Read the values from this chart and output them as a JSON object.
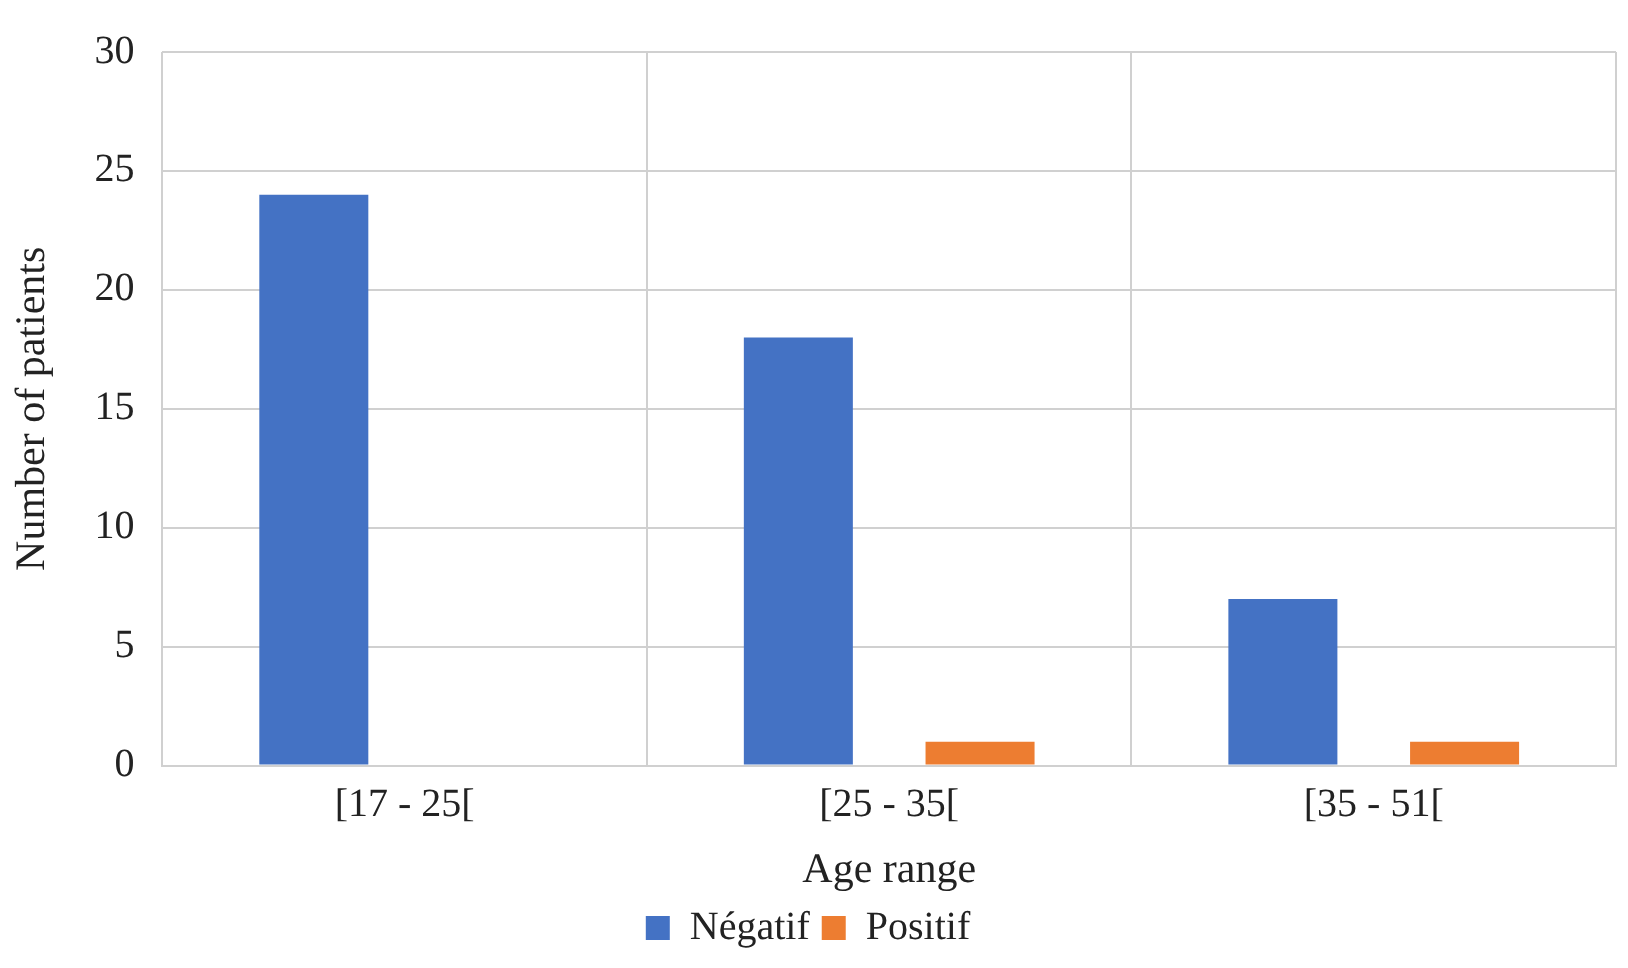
{
  "chart_data": {
    "type": "bar",
    "xlabel": "Age range",
    "ylabel": "Number of patients",
    "categories": [
      "[17 - 25[",
      "[25 - 35[",
      "[35 - 51["
    ],
    "series": [
      {
        "name": "Négatif",
        "color": "#4472c4",
        "values": [
          24,
          18,
          7
        ]
      },
      {
        "name": "Positif",
        "color": "#ed7d31",
        "values": [
          0,
          1,
          1
        ]
      }
    ],
    "ylim": [
      0,
      30
    ],
    "yticks": [
      0,
      5,
      10,
      15,
      20,
      25,
      30
    ],
    "grid": true,
    "legend": "bottom"
  }
}
